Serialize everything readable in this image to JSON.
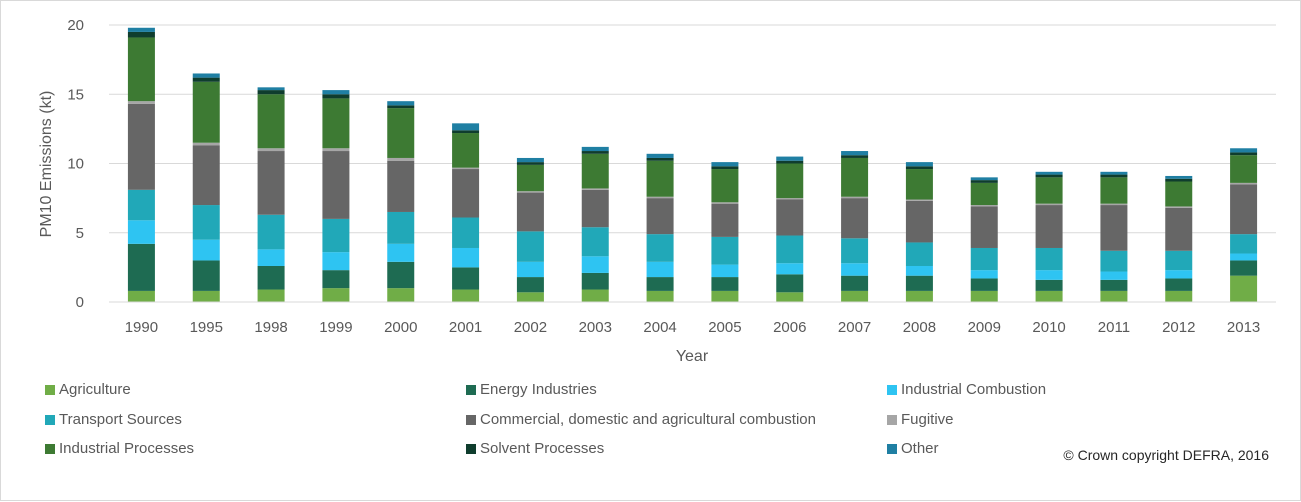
{
  "chart_data": {
    "type": "bar",
    "stacked": true,
    "xlabel": "Year",
    "ylabel": "PM10 Emissions (kt)",
    "ylim": [
      0,
      20
    ],
    "yticks": [
      0,
      5,
      10,
      15,
      20
    ],
    "grid": true,
    "legend_position": "bottom",
    "copyright": "© Crown copyright DEFRA, 2016",
    "categories": [
      "1990",
      "1995",
      "1998",
      "1999",
      "2000",
      "2001",
      "2002",
      "2003",
      "2004",
      "2005",
      "2006",
      "2007",
      "2008",
      "2009",
      "2010",
      "2011",
      "2012",
      "2013"
    ],
    "series": [
      {
        "name": "Agriculture",
        "color": "#70ad47",
        "values": [
          0.8,
          0.8,
          0.9,
          1.0,
          1.0,
          0.9,
          0.7,
          0.9,
          0.8,
          0.8,
          0.7,
          0.8,
          0.8,
          0.8,
          0.8,
          0.8,
          0.8,
          1.9
        ]
      },
      {
        "name": "Energy Industries",
        "color": "#1e6b52",
        "values": [
          3.4,
          2.2,
          1.7,
          1.3,
          1.9,
          1.6,
          1.1,
          1.2,
          1.0,
          1.0,
          1.3,
          1.1,
          1.1,
          0.9,
          0.8,
          0.8,
          0.9,
          1.1
        ]
      },
      {
        "name": "Industrial Combustion",
        "color": "#2ec4f2",
        "values": [
          1.7,
          1.5,
          1.2,
          1.3,
          1.3,
          1.4,
          1.1,
          1.2,
          1.1,
          0.9,
          0.8,
          0.9,
          0.7,
          0.6,
          0.7,
          0.6,
          0.6,
          0.5
        ]
      },
      {
        "name": "Transport Sources",
        "color": "#21a8b8",
        "values": [
          2.2,
          2.5,
          2.5,
          2.4,
          2.3,
          2.2,
          2.2,
          2.1,
          2.0,
          2.0,
          2.0,
          1.8,
          1.7,
          1.6,
          1.6,
          1.5,
          1.4,
          1.4
        ]
      },
      {
        "name": "Commercial, domestic and agricultural combustion",
        "color": "#666666",
        "values": [
          6.2,
          4.3,
          4.6,
          4.9,
          3.7,
          3.5,
          2.8,
          2.7,
          2.6,
          2.4,
          2.6,
          2.9,
          3.0,
          3.0,
          3.1,
          3.3,
          3.1,
          3.6
        ]
      },
      {
        "name": "Fugitive",
        "color": "#a6a6a6",
        "values": [
          0.2,
          0.2,
          0.2,
          0.2,
          0.2,
          0.1,
          0.1,
          0.1,
          0.1,
          0.1,
          0.1,
          0.1,
          0.1,
          0.1,
          0.1,
          0.1,
          0.1,
          0.1
        ]
      },
      {
        "name": "Industrial Processes",
        "color": "#3d7a33",
        "values": [
          4.6,
          4.4,
          3.9,
          3.6,
          3.6,
          2.5,
          1.9,
          2.5,
          2.6,
          2.4,
          2.5,
          2.8,
          2.2,
          1.6,
          1.9,
          1.9,
          1.8,
          2.0
        ]
      },
      {
        "name": "Solvent Processes",
        "color": "#0f3d2e",
        "values": [
          0.4,
          0.3,
          0.3,
          0.3,
          0.2,
          0.2,
          0.2,
          0.2,
          0.2,
          0.2,
          0.2,
          0.2,
          0.2,
          0.2,
          0.2,
          0.2,
          0.2,
          0.2
        ]
      },
      {
        "name": "Other",
        "color": "#1f7fa3",
        "values": [
          0.3,
          0.3,
          0.2,
          0.3,
          0.3,
          0.5,
          0.3,
          0.3,
          0.3,
          0.3,
          0.3,
          0.3,
          0.3,
          0.2,
          0.2,
          0.2,
          0.2,
          0.3
        ]
      }
    ]
  }
}
